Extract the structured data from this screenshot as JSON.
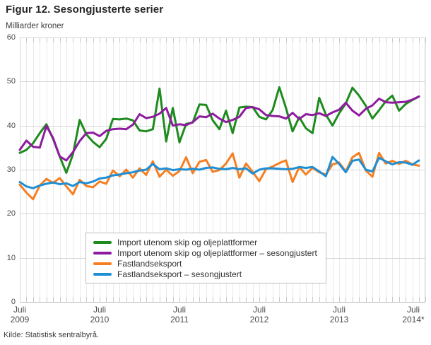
{
  "chart_data": {
    "type": "line",
    "title": "Figur 12. Sesongjusterte serier",
    "y_axis_unit": "Milliarder kroner",
    "source": "Kilde: Statistisk sentralbyrå.",
    "x_frequency": "monthly",
    "x_range": "Juli 2009 – Juli 2014",
    "x_tick_labels": [
      [
        "Juli",
        "2009"
      ],
      [
        "Juli",
        "2010"
      ],
      [
        "Juli",
        "2011"
      ],
      [
        "Juli",
        "2012"
      ],
      [
        "Juli",
        "2013"
      ],
      [
        "Juli",
        "2014*"
      ]
    ],
    "ylim": [
      0,
      60
    ],
    "y_ticks": [
      60,
      50,
      40,
      30,
      20,
      10,
      0
    ],
    "grid": true,
    "legend_position": "bottom-center-inside",
    "colors": {
      "import_green": "#1e8b1e",
      "import_adjusted_purple": "#8e1b9e",
      "export_orange": "#f57f22",
      "export_adjusted_blue": "#1e8fd5",
      "gridline_h": "#d6d6d6",
      "gridline_v": "#ebebeb",
      "axis_line": "#bdbdbd",
      "tick": "#c9c9c9"
    },
    "series": [
      {
        "name": "Import utenom skip og oljeplattformer",
        "color": "#1e8b1e",
        "values": [
          33.8,
          34.5,
          36.0,
          38.3,
          40.3,
          37.0,
          33.0,
          29.3,
          33.5,
          41.3,
          38.0,
          36.3,
          35.1,
          37.0,
          41.5,
          41.4,
          41.6,
          41.2,
          38.9,
          38.7,
          39.2,
          48.4,
          36.4,
          44.0,
          36.2,
          40.4,
          40.7,
          44.8,
          44.7,
          41.2,
          39.2,
          43.4,
          38.3,
          44.1,
          44.3,
          44.2,
          42.0,
          41.4,
          43.5,
          48.7,
          44.0,
          38.7,
          41.9,
          39.4,
          38.3,
          46.3,
          42.5,
          40.0,
          42.8,
          45.0,
          48.6,
          46.8,
          44.5,
          41.6,
          43.5,
          45.5,
          46.8,
          43.4,
          44.9,
          45.8,
          46.6
        ]
      },
      {
        "name": "Import utenom skip og oljeplattformer – sesongjustert",
        "color": "#8e1b9e",
        "values": [
          34.5,
          36.6,
          35.2,
          35.0,
          39.9,
          37.2,
          33.0,
          32.1,
          34.0,
          36.5,
          38.3,
          38.4,
          37.6,
          38.8,
          39.2,
          39.3,
          39.2,
          40.2,
          42.6,
          41.7,
          42.0,
          42.7,
          44.0,
          40.0,
          40.3,
          40.1,
          40.8,
          42.1,
          41.9,
          42.7,
          41.6,
          40.8,
          41.3,
          42.0,
          44.0,
          44.2,
          43.7,
          42.4,
          42.2,
          42.1,
          41.6,
          42.9,
          41.5,
          42.6,
          42.4,
          42.8,
          42.2,
          43.0,
          43.6,
          45.2,
          43.4,
          42.3,
          43.8,
          44.6,
          46.1,
          45.3,
          45.2,
          45.3,
          45.4,
          45.9,
          46.6
        ]
      },
      {
        "name": "Fastlandseksport",
        "color": "#f57f22",
        "values": [
          26.6,
          24.8,
          23.3,
          26.4,
          27.9,
          27.0,
          28.1,
          26.2,
          24.4,
          27.7,
          26.3,
          26.0,
          27.3,
          26.8,
          29.8,
          28.5,
          30.0,
          28.2,
          30.3,
          28.8,
          31.9,
          28.4,
          30.0,
          28.6,
          29.7,
          32.8,
          29.2,
          31.8,
          32.2,
          29.5,
          29.9,
          31.4,
          33.7,
          28.2,
          31.4,
          29.5,
          27.4,
          30.1,
          30.7,
          31.5,
          32.1,
          27.2,
          30.6,
          28.9,
          30.4,
          29.4,
          28.9,
          31.2,
          31.6,
          29.6,
          32.8,
          33.8,
          29.8,
          28.4,
          33.8,
          31.4,
          32.0,
          31.3,
          32.0,
          31.2,
          30.9
        ]
      },
      {
        "name": "Fastlandseksport – sesongjustert",
        "color": "#1e8fd5",
        "values": [
          27.2,
          26.2,
          25.8,
          26.4,
          26.8,
          27.1,
          26.7,
          26.9,
          26.3,
          27.2,
          26.9,
          27.3,
          28.0,
          28.2,
          28.7,
          28.9,
          29.2,
          29.4,
          29.8,
          30.0,
          31.3,
          30.1,
          30.3,
          29.9,
          30.1,
          30.0,
          30.2,
          30.0,
          30.4,
          30.5,
          30.2,
          30.1,
          30.4,
          30.1,
          30.3,
          29.1,
          30.0,
          30.3,
          30.3,
          30.2,
          30.1,
          30.2,
          30.6,
          30.4,
          30.6,
          29.6,
          28.5,
          32.9,
          31.3,
          29.4,
          32.0,
          32.3,
          30.0,
          29.6,
          32.7,
          31.9,
          31.2,
          31.7,
          31.6,
          31.1,
          32.1
        ]
      }
    ]
  }
}
